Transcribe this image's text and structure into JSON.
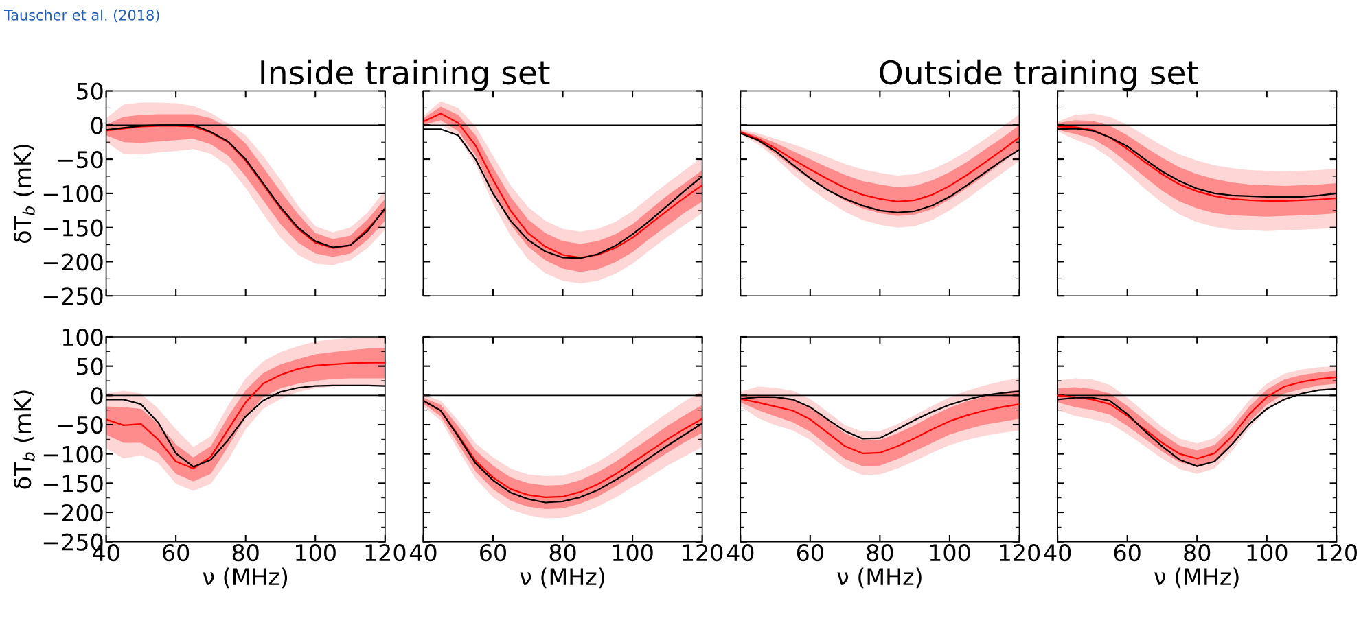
{
  "chart_data": [
    {
      "type": "line",
      "title": "Inside training set",
      "ylabel": "δT$_{b}$ (mK)",
      "annotations": [
        "Tauscher et al. (2018)"
      ],
      "tick_labels": "y",
      "xlim": [
        40,
        120
      ],
      "xticks": [
        40,
        60,
        80,
        100,
        120
      ],
      "ylim": [
        -250,
        50
      ],
      "yticks": [
        -250,
        -200,
        -150,
        -100,
        -50,
        0,
        50
      ],
      "ref_lines": [
        {
          "axis": "y",
          "value": 0,
          "color": "#000000"
        }
      ],
      "x": [
        40,
        45,
        50,
        55,
        60,
        65,
        70,
        75,
        80,
        85,
        90,
        95,
        100,
        105,
        110,
        115,
        120
      ],
      "series": [
        {
          "color": "#ffd6d6",
          "values": [
            null,
            null,
            null,
            null,
            null,
            null,
            null,
            null,
            null,
            null,
            null,
            null,
            null,
            null,
            null,
            null,
            null
          ],
          "lower": [
            -25,
            -42,
            -43,
            -40,
            -38,
            -35,
            -42,
            -60,
            -92,
            -130,
            -165,
            -190,
            -203,
            -205,
            -198,
            -180,
            -153
          ],
          "upper": [
            10,
            30,
            33,
            33,
            32,
            28,
            18,
            2,
            -15,
            -45,
            -80,
            -118,
            -148,
            -157,
            -150,
            -128,
            -95
          ]
        },
        {
          "color": "#ff8c8c",
          "values": [
            null,
            null,
            null,
            null,
            null,
            null,
            null,
            null,
            null,
            null,
            null,
            null,
            null,
            null,
            null,
            null,
            null
          ],
          "lower": [
            -15,
            -25,
            -26,
            -24,
            -22,
            -20,
            -28,
            -45,
            -75,
            -110,
            -145,
            -172,
            -188,
            -193,
            -188,
            -168,
            -140
          ],
          "upper": [
            0,
            12,
            15,
            16,
            16,
            16,
            10,
            -4,
            -27,
            -62,
            -97,
            -130,
            -158,
            -167,
            -162,
            -138,
            -108
          ]
        },
        {
          "color": "#ff0000",
          "values": [
            -8,
            -5,
            -2,
            -1,
            -1,
            -2,
            -11,
            -25,
            -52,
            -87,
            -122,
            -152,
            -172,
            -180,
            -176,
            -152,
            -124
          ]
        },
        {
          "color": "#000000",
          "values": [
            -7,
            -4,
            -1,
            0,
            0,
            0,
            -10,
            -24,
            -50,
            -85,
            -120,
            -150,
            -170,
            -179,
            -176,
            -155,
            -122
          ]
        }
      ]
    },
    {
      "type": "line",
      "tick_labels": false,
      "xlim": [
        40,
        120
      ],
      "xticks": [
        40,
        60,
        80,
        100,
        120
      ],
      "ylim": [
        -250,
        50
      ],
      "yticks": [
        -250,
        -200,
        -150,
        -100,
        -50,
        0,
        50
      ],
      "ref_lines": [
        {
          "axis": "y",
          "value": 0,
          "color": "#000000"
        }
      ],
      "x": [
        40,
        45,
        50,
        55,
        60,
        65,
        70,
        75,
        80,
        85,
        90,
        95,
        100,
        105,
        110,
        115,
        120
      ],
      "series": [
        {
          "color": "#ffd6d6",
          "values": [
            null,
            null,
            null,
            null,
            null,
            null,
            null,
            null,
            null,
            null,
            null,
            null,
            null,
            null,
            null,
            null,
            null
          ],
          "lower": [
            -3,
            2,
            -18,
            -58,
            -115,
            -162,
            -196,
            -217,
            -228,
            -232,
            -228,
            -218,
            -203,
            -183,
            -164,
            -146,
            -129
          ],
          "upper": [
            13,
            35,
            25,
            -2,
            -45,
            -88,
            -120,
            -140,
            -152,
            -156,
            -152,
            -142,
            -126,
            -105,
            -85,
            -66,
            -47
          ]
        },
        {
          "color": "#ff8c8c",
          "values": [
            null,
            null,
            null,
            null,
            null,
            null,
            null,
            null,
            null,
            null,
            null,
            null,
            null,
            null,
            null,
            null,
            null
          ],
          "lower": [
            0,
            7,
            -9,
            -45,
            -98,
            -145,
            -178,
            -198,
            -210,
            -215,
            -211,
            -201,
            -186,
            -166,
            -147,
            -128,
            -112
          ],
          "upper": [
            10,
            27,
            15,
            -15,
            -62,
            -105,
            -138,
            -158,
            -170,
            -174,
            -170,
            -160,
            -145,
            -124,
            -103,
            -85,
            -66
          ]
        },
        {
          "color": "#ff0000",
          "values": [
            5,
            17,
            3,
            -30,
            -80,
            -125,
            -158,
            -178,
            -190,
            -194,
            -190,
            -180,
            -165,
            -145,
            -125,
            -106,
            -88
          ]
        },
        {
          "color": "#000000",
          "values": [
            -6,
            -6,
            -15,
            -50,
            -100,
            -140,
            -168,
            -185,
            -194,
            -195,
            -189,
            -177,
            -160,
            -140,
            -118,
            -96,
            -75
          ]
        }
      ]
    },
    {
      "type": "line",
      "title": "Outside training set",
      "tick_labels": false,
      "xlim": [
        40,
        120
      ],
      "xticks": [
        40,
        60,
        80,
        100,
        120
      ],
      "ylim": [
        -250,
        50
      ],
      "yticks": [
        -250,
        -200,
        -150,
        -100,
        -50,
        0,
        50
      ],
      "ref_lines": [
        {
          "axis": "y",
          "value": 0,
          "color": "#000000"
        }
      ],
      "x": [
        40,
        45,
        50,
        55,
        60,
        65,
        70,
        75,
        80,
        85,
        90,
        95,
        100,
        105,
        110,
        115,
        120
      ],
      "series": [
        {
          "color": "#ffd6d6",
          "values": [
            null,
            null,
            null,
            null,
            null,
            null,
            null,
            null,
            null,
            null,
            null,
            null,
            null,
            null,
            null,
            null,
            null
          ],
          "lower": [
            -14,
            -28,
            -48,
            -72,
            -93,
            -111,
            -127,
            -139,
            -146,
            -150,
            -148,
            -139,
            -125,
            -108,
            -89,
            -71,
            -52
          ],
          "upper": [
            -6,
            -12,
            -20,
            -28,
            -37,
            -47,
            -57,
            -65,
            -70,
            -74,
            -72,
            -65,
            -53,
            -38,
            -21,
            -3,
            16
          ]
        },
        {
          "color": "#ff8c8c",
          "values": [
            null,
            null,
            null,
            null,
            null,
            null,
            null,
            null,
            null,
            null,
            null,
            null,
            null,
            null,
            null,
            null,
            null
          ],
          "lower": [
            -12,
            -24,
            -42,
            -62,
            -80,
            -96,
            -111,
            -122,
            -129,
            -133,
            -131,
            -123,
            -109,
            -92,
            -74,
            -55,
            -36
          ],
          "upper": [
            -8,
            -16,
            -26,
            -38,
            -50,
            -62,
            -73,
            -82,
            -87,
            -91,
            -89,
            -81,
            -69,
            -54,
            -36,
            -19,
            0
          ]
        },
        {
          "color": "#ff0000",
          "values": [
            -10,
            -20,
            -34,
            -50,
            -65,
            -79,
            -92,
            -102,
            -108,
            -112,
            -110,
            -102,
            -89,
            -73,
            -55,
            -37,
            -18
          ]
        },
        {
          "color": "#000000",
          "values": [
            -12,
            -22,
            -38,
            -58,
            -78,
            -95,
            -108,
            -118,
            -125,
            -128,
            -126,
            -118,
            -105,
            -88,
            -70,
            -52,
            -36
          ]
        }
      ]
    },
    {
      "type": "line",
      "tick_labels": false,
      "xlim": [
        40,
        120
      ],
      "xticks": [
        40,
        60,
        80,
        100,
        120
      ],
      "ylim": [
        -250,
        50
      ],
      "yticks": [
        -250,
        -200,
        -150,
        -100,
        -50,
        0,
        50
      ],
      "ref_lines": [
        {
          "axis": "y",
          "value": 0,
          "color": "#000000"
        }
      ],
      "x": [
        40,
        45,
        50,
        55,
        60,
        65,
        70,
        75,
        80,
        85,
        90,
        95,
        100,
        105,
        110,
        115,
        120
      ],
      "series": [
        {
          "color": "#ffd6d6",
          "values": [
            null,
            null,
            null,
            null,
            null,
            null,
            null,
            null,
            null,
            null,
            null,
            null,
            null,
            null,
            null,
            null,
            null
          ],
          "lower": [
            -9,
            -21,
            -31,
            -48,
            -70,
            -93,
            -114,
            -131,
            -142,
            -149,
            -153,
            -154,
            -155,
            -154,
            -153,
            -152,
            -150
          ],
          "upper": [
            5,
            15,
            17,
            12,
            0,
            -15,
            -30,
            -43,
            -52,
            -59,
            -63,
            -66,
            -67,
            -68,
            -67,
            -66,
            -64
          ]
        },
        {
          "color": "#ff8c8c",
          "values": [
            null,
            null,
            null,
            null,
            null,
            null,
            null,
            null,
            null,
            null,
            null,
            null,
            null,
            null,
            null,
            null,
            null
          ],
          "lower": [
            -7,
            -13,
            -20,
            -35,
            -55,
            -76,
            -96,
            -112,
            -122,
            -129,
            -132,
            -133,
            -134,
            -133,
            -132,
            -131,
            -129
          ],
          "upper": [
            3,
            7,
            6,
            -1,
            -15,
            -32,
            -48,
            -62,
            -72,
            -79,
            -84,
            -87,
            -88,
            -89,
            -88,
            -87,
            -85
          ]
        },
        {
          "color": "#ff0000",
          "values": [
            -2,
            -3,
            -7,
            -18,
            -35,
            -54,
            -72,
            -87,
            -97,
            -104,
            -108,
            -110,
            -111,
            -111,
            -110,
            -109,
            -107
          ]
        },
        {
          "color": "#000000",
          "values": [
            -6,
            -5,
            -8,
            -18,
            -31,
            -50,
            -68,
            -82,
            -93,
            -100,
            -103,
            -104,
            -105,
            -105,
            -105,
            -103,
            -100
          ]
        }
      ]
    },
    {
      "type": "line",
      "xlabel": "ν (MHz)",
      "ylabel": "δT$_{b}$ (mK)",
      "xlim": [
        40,
        120
      ],
      "xticks": [
        40,
        60,
        80,
        100,
        120
      ],
      "ylim": [
        -250,
        100
      ],
      "yticks": [
        -250,
        -200,
        -150,
        -100,
        -50,
        0,
        50,
        100
      ],
      "ref_lines": [
        {
          "axis": "y",
          "value": 0,
          "color": "#000000"
        }
      ],
      "x": [
        40,
        45,
        50,
        55,
        60,
        65,
        70,
        75,
        80,
        85,
        90,
        95,
        100,
        105,
        110,
        115,
        120
      ],
      "series": [
        {
          "color": "#ffd6d6",
          "values": [
            null,
            null,
            null,
            null,
            null,
            null,
            null,
            null,
            null,
            null,
            null,
            null,
            null,
            null,
            null,
            null,
            null
          ],
          "lower": [
            -90,
            -108,
            -102,
            -116,
            -151,
            -163,
            -151,
            -110,
            -58,
            -23,
            -6,
            6,
            12,
            15,
            16,
            16,
            16
          ],
          "upper": [
            3,
            8,
            3,
            -23,
            -58,
            -88,
            -70,
            -17,
            29,
            58,
            74,
            84,
            92,
            96,
            98,
            99,
            99
          ]
        },
        {
          "color": "#ff8c8c",
          "values": [
            null,
            null,
            null,
            null,
            null,
            null,
            null,
            null,
            null,
            null,
            null,
            null,
            null,
            null,
            null,
            null,
            null
          ],
          "lower": [
            -67,
            -81,
            -81,
            -99,
            -134,
            -147,
            -134,
            -87,
            -38,
            -3,
            12,
            20,
            25,
            28,
            29,
            29,
            29
          ],
          "upper": [
            -19,
            -20,
            -23,
            -49,
            -84,
            -106,
            -87,
            -36,
            9,
            38,
            53,
            62,
            70,
            74,
            77,
            80,
            80
          ]
        },
        {
          "color": "#ff0000",
          "values": [
            -41,
            -51,
            -49,
            -76,
            -113,
            -125,
            -105,
            -58,
            -12,
            20,
            35,
            45,
            51,
            53,
            55,
            56,
            56
          ]
        },
        {
          "color": "#000000",
          "values": [
            -7,
            -7,
            -15,
            -47,
            -99,
            -122,
            -110,
            -76,
            -36,
            -9,
            6,
            13,
            16,
            17,
            17,
            17,
            16
          ]
        }
      ]
    },
    {
      "type": "line",
      "xlabel": "ν (MHz)",
      "tick_labels": "x",
      "xlim": [
        40,
        120
      ],
      "xticks": [
        40,
        60,
        80,
        100,
        120
      ],
      "ylim": [
        -250,
        100
      ],
      "yticks": [
        -250,
        -200,
        -150,
        -100,
        -50,
        0,
        50,
        100
      ],
      "ref_lines": [
        {
          "axis": "y",
          "value": 0,
          "color": "#000000"
        }
      ],
      "x": [
        40,
        45,
        50,
        55,
        60,
        65,
        70,
        75,
        80,
        85,
        90,
        95,
        100,
        105,
        110,
        115,
        120
      ],
      "series": [
        {
          "color": "#ffd6d6",
          "values": [
            null,
            null,
            null,
            null,
            null,
            null,
            null,
            null,
            null,
            null,
            null,
            null,
            null,
            null,
            null,
            null,
            null
          ],
          "lower": [
            -19,
            -43,
            -93,
            -142,
            -174,
            -195,
            -205,
            -210,
            -209,
            -202,
            -190,
            -175,
            -157,
            -139,
            -120,
            -104,
            -88
          ],
          "upper": [
            1,
            -9,
            -43,
            -82,
            -106,
            -125,
            -135,
            -138,
            -137,
            -128,
            -114,
            -95,
            -73,
            -51,
            -30,
            -10,
            8
          ]
        },
        {
          "color": "#ff8c8c",
          "values": [
            null,
            null,
            null,
            null,
            null,
            null,
            null,
            null,
            null,
            null,
            null,
            null,
            null,
            null,
            null,
            null,
            null
          ],
          "lower": [
            -14,
            -36,
            -83,
            -130,
            -160,
            -180,
            -190,
            -194,
            -193,
            -185,
            -173,
            -156,
            -137,
            -117,
            -98,
            -80,
            -64
          ],
          "upper": [
            -4,
            -16,
            -53,
            -94,
            -120,
            -140,
            -150,
            -154,
            -153,
            -145,
            -131,
            -114,
            -93,
            -73,
            -52,
            -34,
            -16
          ]
        },
        {
          "color": "#ff0000",
          "values": [
            -9,
            -26,
            -68,
            -112,
            -140,
            -160,
            -170,
            -174,
            -173,
            -165,
            -152,
            -135,
            -115,
            -95,
            -75,
            -57,
            -40
          ]
        },
        {
          "color": "#000000",
          "values": [
            -9,
            -26,
            -70,
            -116,
            -145,
            -166,
            -177,
            -183,
            -181,
            -174,
            -162,
            -145,
            -127,
            -106,
            -86,
            -67,
            -48
          ]
        }
      ]
    },
    {
      "type": "line",
      "xlabel": "ν (MHz)",
      "tick_labels": "x",
      "xlim": [
        40,
        120
      ],
      "xticks": [
        40,
        60,
        80,
        100,
        120
      ],
      "ylim": [
        -250,
        100
      ],
      "yticks": [
        -250,
        -200,
        -150,
        -100,
        -50,
        0,
        50,
        100
      ],
      "ref_lines": [
        {
          "axis": "y",
          "value": 0,
          "color": "#000000"
        }
      ],
      "x": [
        40,
        45,
        50,
        55,
        60,
        65,
        70,
        75,
        80,
        85,
        90,
        95,
        100,
        105,
        110,
        115,
        120
      ],
      "series": [
        {
          "color": "#ffd6d6",
          "values": [
            null,
            null,
            null,
            null,
            null,
            null,
            null,
            null,
            null,
            null,
            null,
            null,
            null,
            null,
            null,
            null,
            null
          ],
          "lower": [
            -18,
            -39,
            -51,
            -60,
            -76,
            -100,
            -123,
            -136,
            -135,
            -125,
            -112,
            -98,
            -85,
            -76,
            -69,
            -64,
            -60
          ],
          "upper": [
            6,
            15,
            13,
            8,
            -6,
            -28,
            -51,
            -62,
            -61,
            -49,
            -34,
            -18,
            -3,
            8,
            17,
            24,
            30
          ]
        },
        {
          "color": "#ff8c8c",
          "values": [
            null,
            null,
            null,
            null,
            null,
            null,
            null,
            null,
            null,
            null,
            null,
            null,
            null,
            null,
            null,
            null,
            null
          ],
          "lower": [
            -12,
            -25,
            -36,
            -46,
            -62,
            -86,
            -109,
            -121,
            -120,
            -109,
            -95,
            -81,
            -67,
            -58,
            -50,
            -45,
            -40
          ],
          "upper": [
            0,
            1,
            -2,
            -6,
            -20,
            -42,
            -65,
            -77,
            -76,
            -65,
            -51,
            -35,
            -21,
            -10,
            -2,
            5,
            10
          ]
        },
        {
          "color": "#ff0000",
          "values": [
            -6,
            -12,
            -19,
            -26,
            -41,
            -64,
            -87,
            -99,
            -98,
            -87,
            -73,
            -58,
            -44,
            -34,
            -26,
            -20,
            -15
          ]
        },
        {
          "color": "#000000",
          "values": [
            -6,
            -3,
            -3,
            -7,
            -20,
            -41,
            -61,
            -74,
            -73,
            -58,
            -42,
            -28,
            -16,
            -7,
            0,
            4,
            7
          ]
        }
      ]
    },
    {
      "type": "line",
      "xlabel": "ν (MHz)",
      "tick_labels": "x",
      "xlim": [
        40,
        120
      ],
      "xticks": [
        40,
        60,
        80,
        100,
        120
      ],
      "ylim": [
        -250,
        100
      ],
      "yticks": [
        -250,
        -200,
        -150,
        -100,
        -50,
        0,
        50,
        100
      ],
      "ref_lines": [
        {
          "axis": "y",
          "value": 0,
          "color": "#000000"
        }
      ],
      "x": [
        40,
        45,
        50,
        55,
        60,
        65,
        70,
        75,
        80,
        85,
        90,
        95,
        100,
        105,
        110,
        115,
        120
      ],
      "series": [
        {
          "color": "#ffd6d6",
          "values": [
            null,
            null,
            null,
            null,
            null,
            null,
            null,
            null,
            null,
            null,
            null,
            null,
            null,
            null,
            null,
            null,
            null
          ],
          "lower": [
            -25,
            -35,
            -41,
            -48,
            -66,
            -87,
            -108,
            -126,
            -134,
            -125,
            -95,
            -56,
            -26,
            -7,
            2,
            8,
            12
          ],
          "upper": [
            25,
            29,
            27,
            18,
            -4,
            -29,
            -54,
            -74,
            -82,
            -73,
            -45,
            -8,
            20,
            37,
            44,
            48,
            50
          ]
        },
        {
          "color": "#ff8c8c",
          "values": [
            null,
            null,
            null,
            null,
            null,
            null,
            null,
            null,
            null,
            null,
            null,
            null,
            null,
            null,
            null,
            null,
            null
          ],
          "lower": [
            -12,
            -20,
            -25,
            -33,
            -52,
            -74,
            -96,
            -114,
            -122,
            -113,
            -84,
            -45,
            -16,
            3,
            11,
            17,
            20
          ],
          "upper": [
            12,
            14,
            11,
            3,
            -18,
            -42,
            -66,
            -86,
            -94,
            -85,
            -56,
            -19,
            10,
            27,
            35,
            39,
            42
          ]
        },
        {
          "color": "#ff0000",
          "values": [
            0,
            -3,
            -7,
            -15,
            -35,
            -58,
            -81,
            -100,
            -108,
            -99,
            -70,
            -32,
            -3,
            15,
            23,
            28,
            31
          ]
        },
        {
          "color": "#000000",
          "values": [
            -7,
            -4,
            -4,
            -9,
            -32,
            -61,
            -87,
            -110,
            -121,
            -113,
            -84,
            -49,
            -23,
            -7,
            3,
            9,
            11
          ]
        }
      ]
    }
  ]
}
